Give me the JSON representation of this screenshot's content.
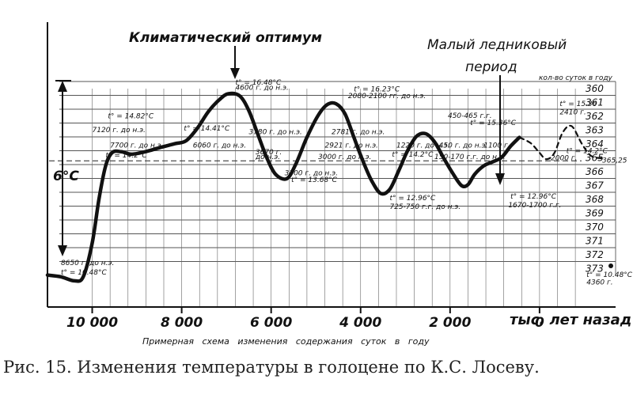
{
  "chart_data": {
    "type": "line",
    "title_left": "Климатический оптимум",
    "title_right_1": "Малый ледниковый",
    "title_right_2": "период",
    "days_header": "кол-во суток в году",
    "xlabel": "тыс. лет назад",
    "subtitle": "Примерная схема изменения содержания суток в году",
    "delta_label": "6°С",
    "x_ticks": [
      {
        "value": 10000,
        "label": "10 000"
      },
      {
        "value": 8000,
        "label": "8 000"
      },
      {
        "value": 6000,
        "label": "6 000"
      },
      {
        "value": 4000,
        "label": "4 000"
      },
      {
        "value": 2000,
        "label": "2 000"
      },
      {
        "value": 0,
        "label": "0"
      }
    ],
    "xlim": [
      11000,
      -1700
    ],
    "ylim": [
      10.0,
      16.9
    ],
    "right_axis": [
      "360",
      "361",
      "362",
      "363",
      "364",
      "365",
      "366",
      "367",
      "368",
      "369",
      "370",
      "371",
      "372",
      "373"
    ],
    "dashed_ref_y": 14.35,
    "series": [
      {
        "points": [
          [
            11000,
            10.95
          ],
          [
            10700,
            10.9
          ],
          [
            10400,
            10.78
          ],
          [
            10200,
            10.9
          ],
          [
            10000,
            11.9
          ],
          [
            9850,
            13.2
          ],
          [
            9700,
            14.2
          ],
          [
            9550,
            14.6
          ],
          [
            9350,
            14.62
          ],
          [
            9150,
            14.55
          ],
          [
            8950,
            14.58
          ],
          [
            8700,
            14.66
          ],
          [
            8450,
            14.76
          ],
          [
            8150,
            14.86
          ],
          [
            7900,
            14.95
          ],
          [
            7650,
            15.32
          ],
          [
            7400,
            15.82
          ],
          [
            7150,
            16.18
          ],
          [
            6950,
            16.35
          ],
          [
            6700,
            16.28
          ],
          [
            6500,
            15.85
          ],
          [
            6300,
            15.15
          ],
          [
            6100,
            14.45
          ],
          [
            5900,
            13.95
          ],
          [
            5650,
            13.82
          ],
          [
            5450,
            14.25
          ],
          [
            5200,
            15.05
          ],
          [
            4950,
            15.7
          ],
          [
            4750,
            16.02
          ],
          [
            4550,
            16.05
          ],
          [
            4350,
            15.75
          ],
          [
            4150,
            15.05
          ],
          [
            3950,
            14.35
          ],
          [
            3750,
            13.75
          ],
          [
            3550,
            13.38
          ],
          [
            3350,
            13.5
          ],
          [
            3150,
            14.05
          ],
          [
            2950,
            14.65
          ],
          [
            2750,
            15.08
          ],
          [
            2550,
            15.16
          ],
          [
            2350,
            14.92
          ],
          [
            2150,
            14.45
          ],
          [
            1950,
            14.0
          ],
          [
            1750,
            13.62
          ],
          [
            1600,
            13.64
          ],
          [
            1450,
            13.95
          ],
          [
            1250,
            14.2
          ],
          [
            1050,
            14.32
          ],
          [
            850,
            14.45
          ],
          [
            650,
            14.78
          ],
          [
            450,
            15.05
          ]
        ]
      },
      {
        "points": [
          [
            450,
            15.05
          ],
          [
            200,
            14.88
          ],
          [
            20,
            14.62
          ],
          [
            -150,
            14.4
          ],
          [
            -330,
            14.58
          ],
          [
            -520,
            15.2
          ],
          [
            -720,
            15.38
          ],
          [
            -950,
            14.85
          ],
          [
            -1150,
            14.5
          ],
          [
            -1420,
            14.42
          ]
        ]
      }
    ],
    "annotations": [
      {
        "text": "t° = 16.48°C",
        "x": 6800,
        "y": 16.62
      },
      {
        "text": "4600 г. до н.э.",
        "x": 6800,
        "y": 16.46
      },
      {
        "text": "t° = 16.23°C",
        "x": 4150,
        "y": 16.42
      },
      {
        "text": "2080-2100 гг. до н.э.",
        "x": 4280,
        "y": 16.22
      },
      {
        "text": "t° = 14.82°C",
        "x": 9650,
        "y": 15.62
      },
      {
        "text": "7120 г. до н.э.",
        "x": 10000,
        "y": 15.2
      },
      {
        "text": "t° = 14.41°C",
        "x": 7950,
        "y": 15.25
      },
      {
        "text": "7700 г. до н.э.",
        "x": 9600,
        "y": 14.75
      },
      {
        "text": "t° = 14.2°C",
        "x": 9700,
        "y": 14.45
      },
      {
        "text": "6060 г. до н.э.",
        "x": 7750,
        "y": 14.75
      },
      {
        "text": "3780 г. до н.э.",
        "x": 6500,
        "y": 15.15
      },
      {
        "text": "3670 г.",
        "x": 6350,
        "y": 14.55
      },
      {
        "text": "до н.э.",
        "x": 6350,
        "y": 14.4
      },
      {
        "text": "3300 г. до н.э.",
        "x": 5700,
        "y": 13.92
      },
      {
        "text": "t° = 13.68°C",
        "x": 5550,
        "y": 13.72
      },
      {
        "text": "2781 г. до н.э.",
        "x": 4650,
        "y": 15.15
      },
      {
        "text": "2921 г. до н.э.",
        "x": 4800,
        "y": 14.75
      },
      {
        "text": "3000 г. до н.э.",
        "x": 4950,
        "y": 14.4
      },
      {
        "text": "1220 г. до н.э.",
        "x": 3200,
        "y": 14.75
      },
      {
        "text": "t° = 14.2°C",
        "x": 3300,
        "y": 14.48
      },
      {
        "text": "450-465 г.г.",
        "x": 2050,
        "y": 15.63
      },
      {
        "text": "t° = 15.36°C",
        "x": 1550,
        "y": 15.42
      },
      {
        "text": "450 г. до н.э.",
        "x": 2250,
        "y": 14.75
      },
      {
        "text": "150-170 г.г. до н.э.",
        "x": 2350,
        "y": 14.4
      },
      {
        "text": "1100 г.",
        "x": 1250,
        "y": 14.75
      },
      {
        "text": "t° = 12.96°C",
        "x": 3350,
        "y": 13.18
      },
      {
        "text": "725-750 г.г. до н.э.",
        "x": 3350,
        "y": 12.92
      },
      {
        "text": "t° = 12.96°C",
        "x": 650,
        "y": 13.23
      },
      {
        "text": "1670-1700 г.г.",
        "x": 700,
        "y": 12.97
      },
      {
        "text": "t° = 15.36",
        "x": -450,
        "y": 15.98
      },
      {
        "text": "2410 г.",
        "x": -450,
        "y": 15.73
      },
      {
        "text": "t° = 14.2°C",
        "x": -600,
        "y": 14.58
      },
      {
        "text": "2000 г.",
        "x": -250,
        "y": 14.37
      },
      {
        "text": "365,25",
        "x": -1400,
        "y": 14.3
      },
      {
        "text": "8650 г. до н.э.",
        "x": 10700,
        "y": 11.25
      },
      {
        "text": "t° = 10.48°C",
        "x": 10700,
        "y": 10.97
      },
      {
        "text": "t° = 10.48°C",
        "x": -1050,
        "y": 10.9
      },
      {
        "text": "4360 г.",
        "x": -1050,
        "y": 10.67
      }
    ]
  },
  "figure_caption": "Рис. 15. Изменения температуры в голоцене по К.С. Лосеву."
}
